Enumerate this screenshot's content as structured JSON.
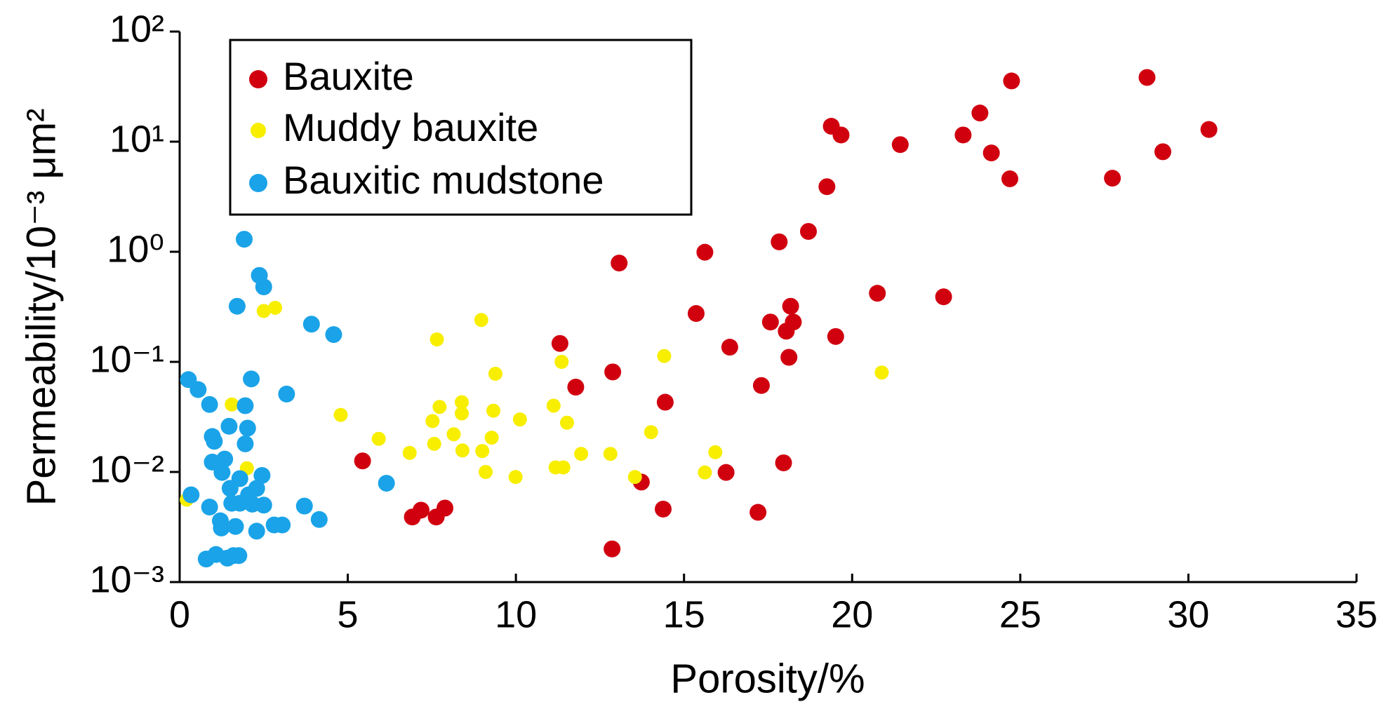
{
  "chart_data": {
    "type": "scatter",
    "xlabel": "Porosity/%",
    "ylabel": "Permeability/10⁻³ μm²",
    "xlim": [
      0,
      35
    ],
    "xticks": [
      0,
      5,
      10,
      15,
      20,
      25,
      30,
      35
    ],
    "ylim": [
      0.001,
      100
    ],
    "yscale": "log",
    "yticks": [
      {
        "value": 0.001,
        "label": "10⁻³"
      },
      {
        "value": 0.01,
        "label": "10⁻²"
      },
      {
        "value": 0.1,
        "label": "10⁻¹"
      },
      {
        "value": 1,
        "label": "10⁰"
      },
      {
        "value": 10,
        "label": "10¹"
      },
      {
        "value": 100,
        "label": "10²"
      }
    ],
    "legend": "upper left",
    "series": [
      {
        "name": "Bauxite",
        "color": "#d0000f",
        "x": [
          5.44,
          6.92,
          7.18,
          7.63,
          7.89,
          11.31,
          11.78,
          12.88,
          12.86,
          13.07,
          13.73,
          14.38,
          14.44,
          15.36,
          15.62,
          16.25,
          16.36,
          17.2,
          17.3,
          17.57,
          17.83,
          17.96,
          18.04,
          18.17,
          18.25,
          18.12,
          18.7,
          19.25,
          19.38,
          19.67,
          19.51,
          20.75,
          21.43,
          22.72,
          23.3,
          23.8,
          24.14,
          24.69,
          24.74,
          27.74,
          28.77,
          29.24,
          30.61
        ],
        "values": [
          0.0126,
          0.0039,
          0.0045,
          0.0039,
          0.0047,
          0.147,
          0.059,
          0.081,
          0.002,
          0.79,
          0.0081,
          0.0046,
          0.043,
          0.275,
          0.99,
          0.0099,
          0.136,
          0.0043,
          0.061,
          0.23,
          1.23,
          0.0121,
          0.19,
          0.32,
          0.23,
          0.11,
          1.53,
          3.9,
          13.8,
          11.5,
          0.17,
          0.42,
          9.4,
          0.39,
          11.5,
          18.2,
          7.9,
          4.6,
          35.6,
          4.66,
          38.3,
          8.1,
          12.9
        ]
      },
      {
        "name": "Muddy bauxite",
        "color": "#f7ee00",
        "x": [
          0.21,
          1.55,
          2.0,
          2.5,
          2.84,
          4.79,
          5.92,
          6.84,
          7.52,
          7.57,
          7.65,
          7.73,
          8.15,
          8.39,
          8.39,
          8.41,
          8.97,
          9.0,
          9.1,
          9.28,
          9.33,
          9.39,
          9.99,
          10.12,
          11.12,
          11.18,
          11.41,
          11.36,
          11.52,
          11.94,
          12.81,
          13.54,
          14.02,
          14.41,
          15.62,
          15.93,
          20.88
        ],
        "values": [
          0.0056,
          0.041,
          0.0108,
          0.29,
          0.31,
          0.033,
          0.02,
          0.0149,
          0.029,
          0.018,
          0.16,
          0.039,
          0.022,
          0.043,
          0.034,
          0.0157,
          0.24,
          0.0155,
          0.01,
          0.0205,
          0.036,
          0.078,
          0.009,
          0.03,
          0.04,
          0.011,
          0.011,
          0.1,
          0.028,
          0.0146,
          0.0146,
          0.009,
          0.023,
          0.113,
          0.0099,
          0.0151,
          0.08
        ]
      },
      {
        "name": "Bauxitic mudstone",
        "color": "#1aa3e8",
        "x": [
          0.26,
          0.34,
          0.55,
          0.89,
          0.89,
          0.97,
          1.03,
          0.97,
          0.79,
          1.08,
          1.21,
          1.26,
          1.34,
          1.24,
          1.42,
          1.5,
          1.47,
          1.55,
          1.6,
          1.66,
          1.71,
          1.76,
          1.79,
          1.79,
          1.92,
          1.95,
          1.95,
          2.02,
          2.05,
          2.13,
          2.16,
          2.29,
          2.29,
          2.37,
          2.45,
          2.5,
          2.5,
          2.81,
          3.05,
          3.18,
          3.71,
          3.92,
          4.15,
          4.58,
          6.15
        ],
        "values": [
          0.069,
          0.0062,
          0.056,
          0.041,
          0.0048,
          0.021,
          0.019,
          0.0123,
          0.00162,
          0.00178,
          0.0036,
          0.0099,
          0.0131,
          0.0031,
          0.00165,
          0.0071,
          0.026,
          0.0052,
          0.00174,
          0.0032,
          0.32,
          0.00174,
          0.0087,
          0.0052,
          1.3,
          0.04,
          0.018,
          0.025,
          0.0062,
          0.07,
          0.0051,
          0.0029,
          0.0071,
          0.61,
          0.0093,
          0.48,
          0.005,
          0.0033,
          0.0033,
          0.051,
          0.0049,
          0.22,
          0.0037,
          0.177,
          0.0079
        ]
      }
    ]
  }
}
